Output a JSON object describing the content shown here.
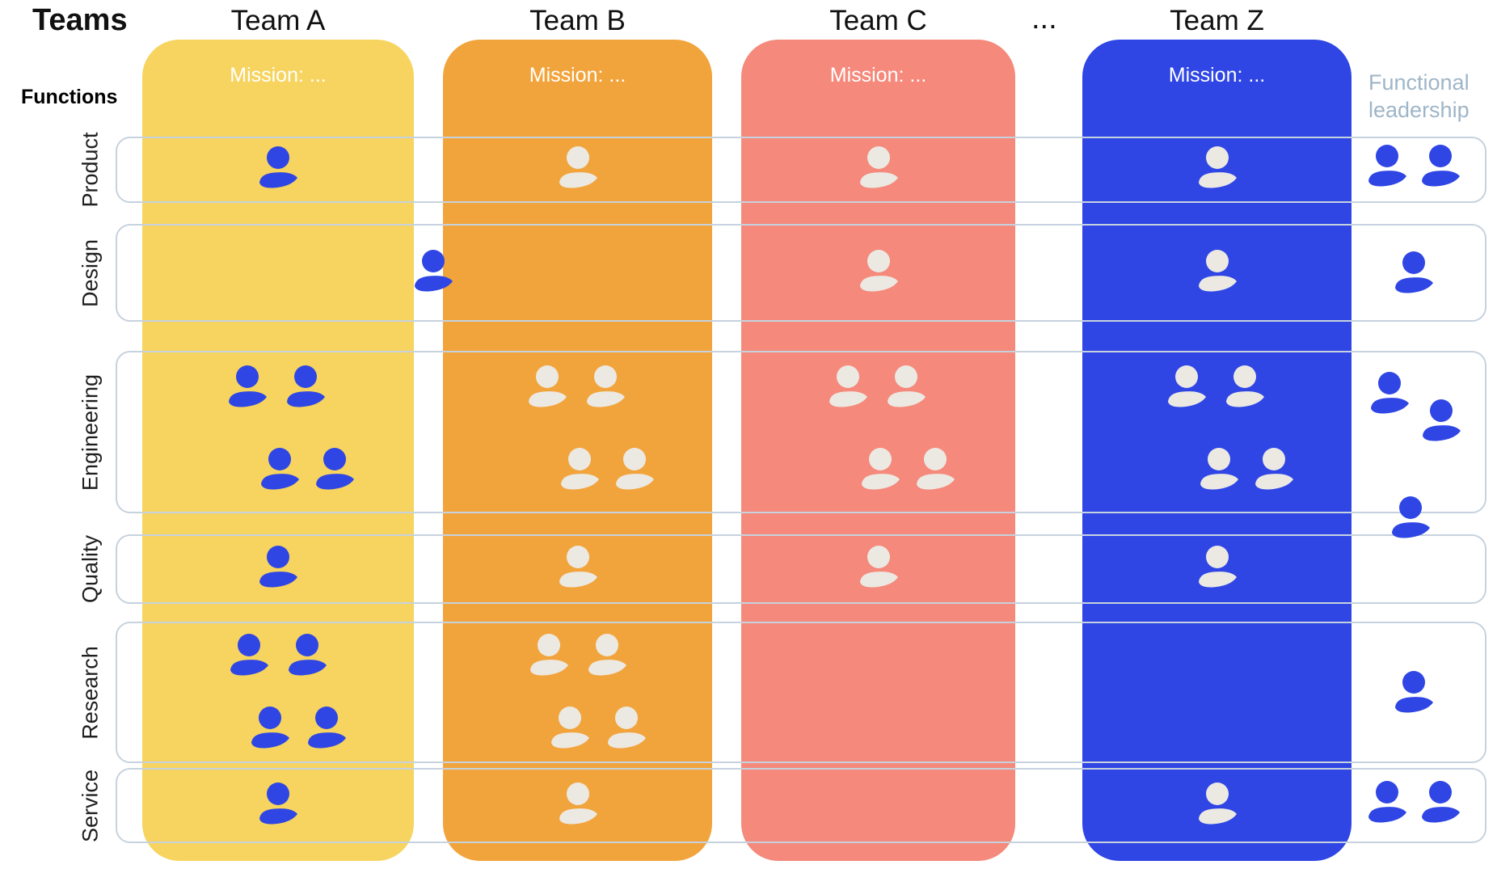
{
  "title": "Teams",
  "functions_label": "Functions",
  "ellipsis": "...",
  "mission_label": "Mission: ...",
  "functional_leadership_label": "Functional leadership",
  "colors": {
    "team_a": "#F6D45F",
    "team_b": "#F2A43C",
    "team_c": "#F5897B",
    "team_z": "#2F46E5",
    "person_blue": "#2F46E5",
    "person_light": "#ECE9E3",
    "row_border": "#C6D2DE",
    "leadership_text": "#9EB5C8",
    "mission_text": "#FFFFFF",
    "heading_text": "#111111"
  },
  "teams": [
    {
      "id": "team-a",
      "name": "Team A",
      "color_key": "team_a",
      "person_color_key": "person_blue"
    },
    {
      "id": "team-b",
      "name": "Team B",
      "color_key": "team_b",
      "person_color_key": "person_light"
    },
    {
      "id": "team-c",
      "name": "Team C",
      "color_key": "team_c",
      "person_color_key": "person_light"
    },
    {
      "id": "team-z",
      "name": "Team Z",
      "color_key": "team_z",
      "person_color_key": "person_light"
    }
  ],
  "functions": [
    "Product",
    "Design",
    "Engineering",
    "Quality",
    "Research",
    "Service"
  ],
  "grid": [
    {
      "function": "Product",
      "team_people": [
        1,
        1,
        1,
        1
      ],
      "leadership_people": 2
    },
    {
      "function": "Design",
      "team_people": [
        0,
        0,
        1,
        1
      ],
      "leadership_people": 1,
      "boundary_person": {
        "between": [
          "Team A",
          "Team B"
        ],
        "people": 1,
        "color_key": "person_blue"
      }
    },
    {
      "function": "Engineering",
      "team_people": [
        4,
        4,
        4,
        4
      ],
      "leadership_people": 3
    },
    {
      "function": "Quality",
      "team_people": [
        1,
        1,
        1,
        1
      ],
      "leadership_people": 0
    },
    {
      "function": "Research",
      "team_people": [
        4,
        4,
        0,
        0
      ],
      "leadership_people": 1
    },
    {
      "function": "Service",
      "team_people": [
        1,
        1,
        0,
        1
      ],
      "leadership_people": 2
    }
  ]
}
